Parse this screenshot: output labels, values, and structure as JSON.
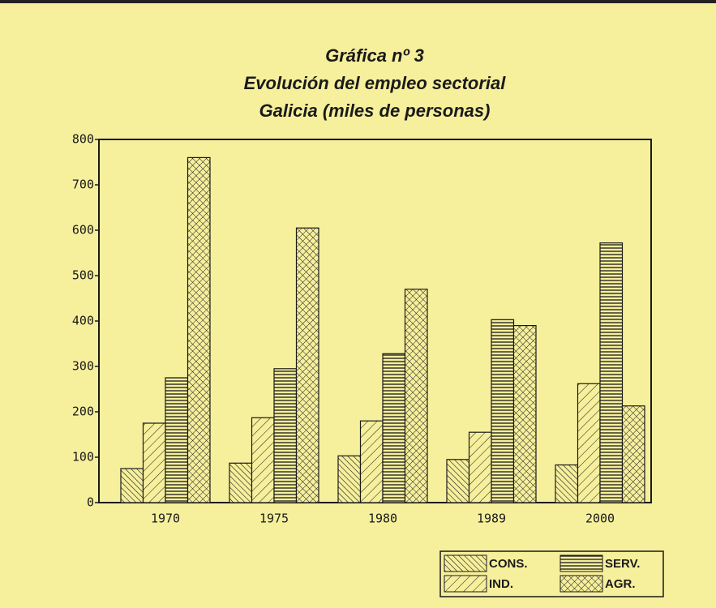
{
  "chart_data": {
    "type": "bar",
    "title": [
      "Gráfica nº 3",
      "Evolución del empleo sectorial",
      "Galicia (miles de personas)"
    ],
    "categories": [
      "1970",
      "1975",
      "1980",
      "1989",
      "2000"
    ],
    "series": [
      {
        "name": "CONS.",
        "color": "#1a1a1a",
        "values": [
          75,
          87,
          103,
          95,
          83
        ]
      },
      {
        "name": "IND.",
        "color": "#1a1a1a",
        "values": [
          175,
          187,
          180,
          155,
          262
        ]
      },
      {
        "name": "SERV.",
        "color": "#1a1a1a",
        "values": [
          275,
          295,
          328,
          403,
          572
        ]
      },
      {
        "name": "AGR.",
        "color": "#1a1a1a",
        "values": [
          760,
          605,
          470,
          390,
          213
        ]
      }
    ],
    "ylim": [
      0,
      800
    ],
    "yticks": [
      0,
      100,
      200,
      300,
      400,
      500,
      600,
      700,
      800
    ],
    "legend": "bottom-right"
  }
}
